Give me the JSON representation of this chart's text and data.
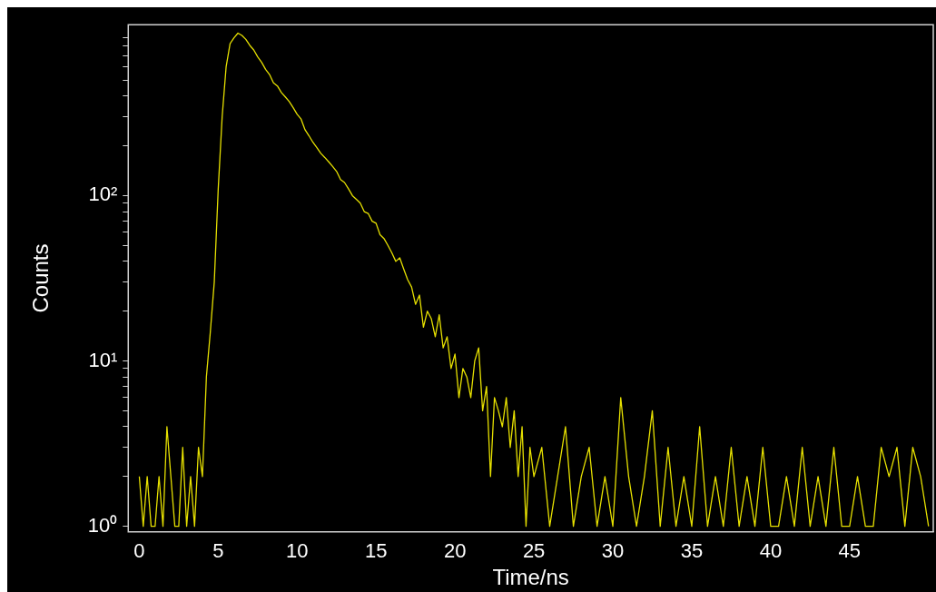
{
  "chart_data": {
    "type": "line",
    "xlabel": "Time/ns",
    "ylabel": "Counts",
    "log": "y",
    "marker": "none",
    "line_style": "solid",
    "x": [
      0,
      0.25,
      0.5,
      0.75,
      1,
      1.25,
      1.5,
      1.75,
      2,
      2.25,
      2.5,
      2.75,
      3,
      3.25,
      3.5,
      3.75,
      4,
      4.25,
      4.5,
      4.75,
      5,
      5.25,
      5.5,
      5.75,
      6,
      6.25,
      6.5,
      6.75,
      7,
      7.25,
      7.5,
      7.75,
      8,
      8.25,
      8.5,
      8.75,
      9,
      9.25,
      9.5,
      9.75,
      10,
      10.25,
      10.5,
      10.75,
      11,
      11.25,
      11.5,
      11.75,
      12,
      12.25,
      12.5,
      12.75,
      13,
      13.25,
      13.5,
      13.75,
      14,
      14.25,
      14.5,
      14.75,
      15,
      15.25,
      15.5,
      15.75,
      16,
      16.25,
      16.5,
      16.75,
      17,
      17.25,
      17.5,
      17.75,
      18,
      18.25,
      18.5,
      18.75,
      19,
      19.25,
      19.5,
      19.75,
      20,
      20.25,
      20.5,
      20.75,
      21,
      21.25,
      21.5,
      21.75,
      22,
      22.25,
      22.5,
      22.75,
      23,
      23.25,
      23.5,
      23.75,
      24,
      24.25,
      24.5,
      24.75,
      25,
      25.5,
      26,
      26.5,
      27,
      27.5,
      28,
      28.5,
      29,
      29.5,
      30,
      30.5,
      31,
      31.5,
      32,
      32.5,
      33,
      33.5,
      34,
      34.5,
      35,
      35.5,
      36,
      36.5,
      37,
      37.5,
      38,
      38.5,
      39,
      39.5,
      40,
      40.5,
      41,
      41.5,
      42,
      42.5,
      43,
      43.5,
      44,
      44.5,
      45,
      45.5,
      46,
      46.5,
      47,
      47.5,
      48,
      48.5,
      49,
      49.5,
      50
    ],
    "series": [
      {
        "color": "#e6e000",
        "values": [
          2,
          1,
          2,
          1,
          1,
          2,
          1,
          4,
          2,
          1,
          1,
          3,
          1,
          2,
          1,
          3,
          2,
          8,
          15,
          30,
          110,
          300,
          600,
          830,
          900,
          960,
          930,
          880,
          810,
          760,
          690,
          640,
          580,
          540,
          480,
          460,
          420,
          395,
          370,
          340,
          310,
          290,
          250,
          230,
          210,
          195,
          180,
          170,
          160,
          150,
          140,
          125,
          120,
          110,
          100,
          95,
          90,
          80,
          78,
          70,
          68,
          58,
          55,
          50,
          45,
          40,
          42,
          36,
          31,
          28,
          22,
          25,
          16,
          20,
          18,
          14,
          19,
          12,
          14,
          9,
          11,
          6,
          9,
          8,
          6,
          10,
          12,
          5,
          7,
          2,
          6,
          5,
          4,
          6,
          3,
          5,
          2,
          4,
          1,
          3,
          2,
          3,
          1,
          2,
          4,
          1,
          2,
          3,
          1,
          2,
          1,
          6,
          2,
          1,
          2,
          5,
          1,
          3,
          1,
          2,
          1,
          4,
          1,
          2,
          1,
          3,
          1,
          2,
          1,
          3,
          1,
          1,
          2,
          1,
          3,
          1,
          2,
          1,
          3,
          1,
          1,
          2,
          1,
          1,
          3,
          2,
          3,
          1,
          3,
          2,
          1
        ]
      }
    ],
    "xlim": [
      -0.7,
      50.3
    ],
    "xticks": [
      0,
      5,
      10,
      15,
      20,
      25,
      30,
      35,
      40,
      45
    ],
    "ylim": [
      0.925,
      1080
    ],
    "yticks": [
      {
        "value": 1,
        "label": "10⁰"
      },
      {
        "value": 2,
        "label": null
      },
      {
        "value": 3,
        "label": null
      },
      {
        "value": 4,
        "label": null
      },
      {
        "value": 5,
        "label": null
      },
      {
        "value": 6,
        "label": null
      },
      {
        "value": 7,
        "label": null
      },
      {
        "value": 8,
        "label": null
      },
      {
        "value": 9,
        "label": null
      },
      {
        "value": 10,
        "label": "10¹"
      },
      {
        "value": 20,
        "label": null
      },
      {
        "value": 30,
        "label": null
      },
      {
        "value": 40,
        "label": null
      },
      {
        "value": 50,
        "label": null
      },
      {
        "value": 60,
        "label": null
      },
      {
        "value": 70,
        "label": null
      },
      {
        "value": 80,
        "label": null
      },
      {
        "value": 90,
        "label": null
      },
      {
        "value": 100,
        "label": "10²"
      },
      {
        "value": 200,
        "label": null
      },
      {
        "value": 300,
        "label": null
      },
      {
        "value": 400,
        "label": null
      },
      {
        "value": 500,
        "label": null
      },
      {
        "value": 600,
        "label": null
      },
      {
        "value": 700,
        "label": null
      },
      {
        "value": 800,
        "label": null
      },
      {
        "value": 900,
        "label": null
      }
    ]
  }
}
